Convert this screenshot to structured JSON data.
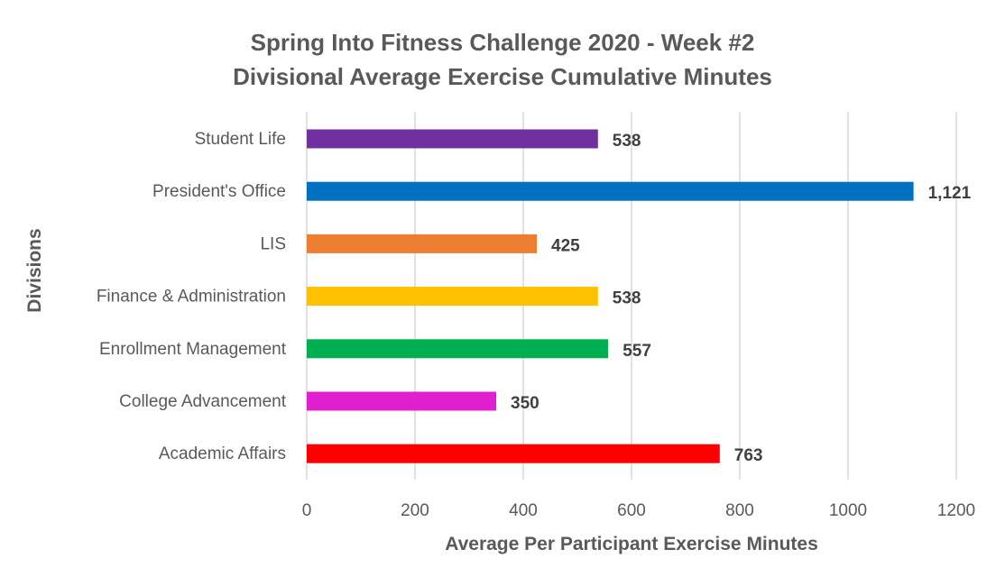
{
  "chart_data": {
    "type": "bar",
    "orientation": "horizontal",
    "title": [
      "Spring Into Fitness Challenge 2020 - Week #2",
      "Divisional Average Exercise Cumulative  Minutes"
    ],
    "xlabel": "Average Per Participant Exercise Minutes",
    "ylabel": "Divisions",
    "xlim": [
      0,
      1200
    ],
    "xticks": [
      0,
      200,
      400,
      600,
      800,
      1000,
      1200
    ],
    "grid": true,
    "legend": "none",
    "categories": [
      "Student Life",
      "President's Office",
      "LIS",
      "Finance & Administration",
      "Enrollment Management",
      "College Advancement",
      "Academic Affairs"
    ],
    "values": [
      538,
      1121,
      425,
      538,
      557,
      350,
      763
    ],
    "value_labels": [
      "538",
      "1,121",
      "425",
      "538",
      "557",
      "350",
      "763"
    ],
    "colors": [
      "#7030a0",
      "#0070c0",
      "#ed7d31",
      "#ffc000",
      "#00b050",
      "#e020d0",
      "#ff0000"
    ]
  }
}
